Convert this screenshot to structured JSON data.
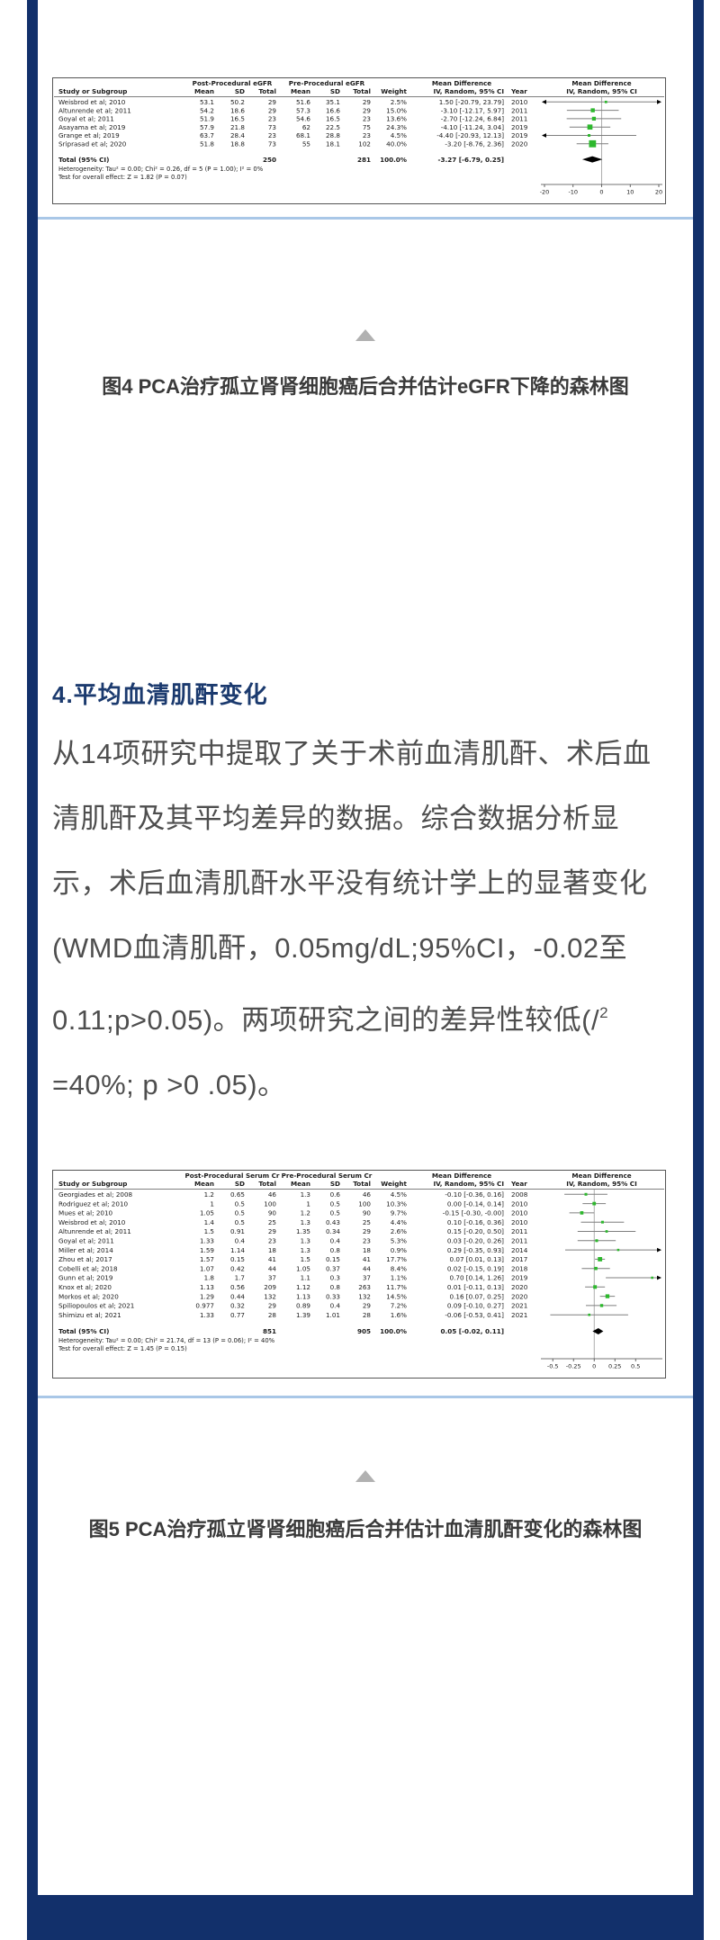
{
  "page": {
    "caption1": "图4 PCA治疗孤立肾肾细胞癌后合并估计eGFR下降的森林图",
    "section_heading": "4.平均血清肌酐变化",
    "paragraph": {
      "line1": "从14项研究中提取了关于术前血清肌酐、术后血",
      "line2": "清肌酐及其平均差异的数据。综合数据分析显",
      "line3": "示，术后血清肌酐水平没有统计学上的显著变化",
      "line4": "(WMD血清肌酐，0.05mg/dL;95%CI，-0.02至",
      "line5_text": "0.11;p>0.05)。两项研究之间的差异性较低(/",
      "line5_sup": "2",
      "line6": "=40%; p >0 .05)。"
    },
    "caption2": "图5 PCA治疗孤立肾肾细胞癌后合并估计血清肌酐变化的森林图"
  },
  "colors": {
    "navy": "#12306B",
    "heading": "#1B3A6E",
    "body_text": "#4E4E4E",
    "caption_text": "#3A3A3A",
    "separator_blue": "#A9C7E7",
    "triangle_gray": "#B1B1B1",
    "forest_green": "#2DB82D",
    "ci_line_gray": "#7F7F7F",
    "table_text": "#1A1A1A"
  },
  "chart_data": [
    {
      "type": "forest",
      "title": "图4 PCA治疗孤立肾肾细胞癌后合并估计eGFR下降的森林图",
      "group_headers": [
        "Post-Procedural eGFR",
        "Pre-Procedural eGFR"
      ],
      "md_header": "Mean Difference",
      "col_labels": {
        "study": "Study or Subgroup",
        "mean": "Mean",
        "sd": "SD",
        "total": "Total",
        "weight": "Weight",
        "ci": "IV, Random, 95% CI",
        "year": "Year"
      },
      "rows": [
        {
          "study": "Weisbrod et al; 2010",
          "mean1": "53.1",
          "sd1": "50.2",
          "total1": "29",
          "mean2": "51.6",
          "sd2": "35.1",
          "total2": "29",
          "weight": "2.5%",
          "ci_label": "1.50 [-20.79, 23.79]",
          "year": "2010",
          "md": 1.5,
          "lo": -20.79,
          "hi": 23.79
        },
        {
          "study": "Altunrende et al; 2011",
          "mean1": "54.2",
          "sd1": "18.6",
          "total1": "29",
          "mean2": "57.3",
          "sd2": "16.6",
          "total2": "29",
          "weight": "15.0%",
          "ci_label": "-3.10 [-12.17, 5.97]",
          "year": "2011",
          "md": -3.1,
          "lo": -12.17,
          "hi": 5.97
        },
        {
          "study": "Goyal et al; 2011",
          "mean1": "51.9",
          "sd1": "16.5",
          "total1": "23",
          "mean2": "54.6",
          "sd2": "16.5",
          "total2": "23",
          "weight": "13.6%",
          "ci_label": "-2.70 [-12.24, 6.84]",
          "year": "2011",
          "md": -2.7,
          "lo": -12.24,
          "hi": 6.84
        },
        {
          "study": "Asayama et al; 2019",
          "mean1": "57.9",
          "sd1": "21.8",
          "total1": "73",
          "mean2": "62",
          "sd2": "22.5",
          "total2": "75",
          "weight": "24.3%",
          "ci_label": "-4.10 [-11.24, 3.04]",
          "year": "2019",
          "md": -4.1,
          "lo": -11.24,
          "hi": 3.04
        },
        {
          "study": "Grange et al; 2019",
          "mean1": "63.7",
          "sd1": "28.4",
          "total1": "23",
          "mean2": "68.1",
          "sd2": "28.8",
          "total2": "23",
          "weight": "4.5%",
          "ci_label": "-4.40 [-20.93, 12.13]",
          "year": "2019",
          "md": -4.4,
          "lo": -20.93,
          "hi": 12.13
        },
        {
          "study": "Sriprasad et al; 2020",
          "mean1": "51.8",
          "sd1": "18.8",
          "total1": "73",
          "mean2": "55",
          "sd2": "18.1",
          "total2": "102",
          "weight": "40.0%",
          "ci_label": "-3.20 [-8.76, 2.36]",
          "year": "2020",
          "md": -3.2,
          "lo": -8.76,
          "hi": 2.36
        }
      ],
      "total": {
        "label": "Total (95% CI)",
        "total1": "250",
        "total2": "281",
        "weight": "100.0%",
        "ci_label": "-3.27 [-6.79, 0.25]",
        "md": -3.27,
        "lo": -6.79,
        "hi": 0.25
      },
      "heterogeneity": "Heterogeneity: Tau² = 0.00; Chi² = 0.26, df = 5 (P = 1.00); I² = 0%",
      "overall_effect": "Test for overall effect: Z = 1.82 (P = 0.07)",
      "axis": {
        "xmin": -20,
        "xmax": 20,
        "ticks": [
          -20,
          -10,
          0,
          10,
          20
        ],
        "tick_labels": [
          "-20",
          "-10",
          "0",
          "10",
          "20"
        ]
      }
    },
    {
      "type": "forest",
      "title": "图5 PCA治疗孤立肾肾细胞癌后合并估计血清肌酐变化的森林图",
      "group_headers": [
        "Post-Procedural Serum Cr",
        "Pre-Procedural Serum Cr"
      ],
      "md_header": "Mean Difference",
      "col_labels": {
        "study": "Study or Subgroup",
        "mean": "Mean",
        "sd": "SD",
        "total": "Total",
        "weight": "Weight",
        "ci": "IV, Random, 95% CI",
        "year": "Year"
      },
      "rows": [
        {
          "study": "Georgiades et al; 2008",
          "mean1": "1.2",
          "sd1": "0.65",
          "total1": "46",
          "mean2": "1.3",
          "sd2": "0.6",
          "total2": "46",
          "weight": "4.5%",
          "ci_label": "-0.10 [-0.36, 0.16]",
          "year": "2008",
          "md": -0.1,
          "lo": -0.36,
          "hi": 0.16
        },
        {
          "study": "Rodriguez et al; 2010",
          "mean1": "1",
          "sd1": "0.5",
          "total1": "100",
          "mean2": "1",
          "sd2": "0.5",
          "total2": "100",
          "weight": "10.3%",
          "ci_label": "0.00 [-0.14, 0.14]",
          "year": "2010",
          "md": 0,
          "lo": -0.14,
          "hi": 0.14
        },
        {
          "study": "Mues et al; 2010",
          "mean1": "1.05",
          "sd1": "0.5",
          "total1": "90",
          "mean2": "1.2",
          "sd2": "0.5",
          "total2": "90",
          "weight": "9.7%",
          "ci_label": "-0.15 [-0.30, -0.00]",
          "year": "2010",
          "md": -0.15,
          "lo": -0.3,
          "hi": 0
        },
        {
          "study": "Weisbrod et al; 2010",
          "mean1": "1.4",
          "sd1": "0.5",
          "total1": "25",
          "mean2": "1.3",
          "sd2": "0.43",
          "total2": "25",
          "weight": "4.4%",
          "ci_label": "0.10 [-0.16, 0.36]",
          "year": "2010",
          "md": 0.1,
          "lo": -0.16,
          "hi": 0.36
        },
        {
          "study": "Altunrende et al; 2011",
          "mean1": "1.5",
          "sd1": "0.91",
          "total1": "29",
          "mean2": "1.35",
          "sd2": "0.34",
          "total2": "29",
          "weight": "2.6%",
          "ci_label": "0.15 [-0.20, 0.50]",
          "year": "2011",
          "md": 0.15,
          "lo": -0.2,
          "hi": 0.5
        },
        {
          "study": "Goyal et al; 2011",
          "mean1": "1.33",
          "sd1": "0.4",
          "total1": "23",
          "mean2": "1.3",
          "sd2": "0.4",
          "total2": "23",
          "weight": "5.3%",
          "ci_label": "0.03 [-0.20, 0.26]",
          "year": "2011",
          "md": 0.03,
          "lo": -0.2,
          "hi": 0.26
        },
        {
          "study": "Miller et al; 2014",
          "mean1": "1.59",
          "sd1": "1.14",
          "total1": "18",
          "mean2": "1.3",
          "sd2": "0.8",
          "total2": "18",
          "weight": "0.9%",
          "ci_label": "0.29 [-0.35, 0.93]",
          "year": "2014",
          "md": 0.29,
          "lo": -0.35,
          "hi": 0.93
        },
        {
          "study": "Zhou et al; 2017",
          "mean1": "1.57",
          "sd1": "0.15",
          "total1": "41",
          "mean2": "1.5",
          "sd2": "0.15",
          "total2": "41",
          "weight": "17.7%",
          "ci_label": "0.07 [0.01, 0.13]",
          "year": "2017",
          "md": 0.07,
          "lo": 0.01,
          "hi": 0.13
        },
        {
          "study": "Cobelli et al; 2018",
          "mean1": "1.07",
          "sd1": "0.42",
          "total1": "44",
          "mean2": "1.05",
          "sd2": "0.37",
          "total2": "44",
          "weight": "8.4%",
          "ci_label": "0.02 [-0.15, 0.19]",
          "year": "2018",
          "md": 0.02,
          "lo": -0.15,
          "hi": 0.19
        },
        {
          "study": "Gunn et al; 2019",
          "mean1": "1.8",
          "sd1": "1.7",
          "total1": "37",
          "mean2": "1.1",
          "sd2": "0.3",
          "total2": "37",
          "weight": "1.1%",
          "ci_label": "0.70 [0.14, 1.26]",
          "year": "2019",
          "md": 0.7,
          "lo": 0.14,
          "hi": 1.26
        },
        {
          "study": "Knox et al; 2020",
          "mean1": "1.13",
          "sd1": "0.56",
          "total1": "209",
          "mean2": "1.12",
          "sd2": "0.8",
          "total2": "263",
          "weight": "11.7%",
          "ci_label": "0.01 [-0.11, 0.13]",
          "year": "2020",
          "md": 0.01,
          "lo": -0.11,
          "hi": 0.13
        },
        {
          "study": "Morkos et al; 2020",
          "mean1": "1.29",
          "sd1": "0.44",
          "total1": "132",
          "mean2": "1.13",
          "sd2": "0.33",
          "total2": "132",
          "weight": "14.5%",
          "ci_label": "0.16 [0.07, 0.25]",
          "year": "2020",
          "md": 0.16,
          "lo": 0.07,
          "hi": 0.25
        },
        {
          "study": "Spiliopoulos et al; 2021",
          "mean1": "0.977",
          "sd1": "0.32",
          "total1": "29",
          "mean2": "0.89",
          "sd2": "0.4",
          "total2": "29",
          "weight": "7.2%",
          "ci_label": "0.09 [-0.10, 0.27]",
          "year": "2021",
          "md": 0.09,
          "lo": -0.1,
          "hi": 0.27
        },
        {
          "study": "Shimizu et al; 2021",
          "mean1": "1.33",
          "sd1": "0.77",
          "total1": "28",
          "mean2": "1.39",
          "sd2": "1.01",
          "total2": "28",
          "weight": "1.6%",
          "ci_label": "-0.06 [-0.53, 0.41]",
          "year": "2021",
          "md": -0.06,
          "lo": -0.53,
          "hi": 0.41
        }
      ],
      "total": {
        "label": "Total (95% CI)",
        "total1": "851",
        "total2": "905",
        "weight": "100.0%",
        "ci_label": "0.05 [-0.02, 0.11]",
        "md": 0.05,
        "lo": -0.02,
        "hi": 0.11
      },
      "heterogeneity": "Heterogeneity: Tau² = 0.00; Chi² = 21.74, df = 13 (P = 0.06); I² = 40%",
      "overall_effect": "Test for overall effect: Z = 1.45 (P = 0.15)",
      "axis": {
        "xmin": -0.6,
        "xmax": 0.78,
        "ticks": [
          -0.5,
          -0.25,
          0,
          0.25,
          0.5
        ],
        "tick_labels": [
          "-0.5",
          "-0.25",
          "0",
          "0.25",
          "0.5"
        ]
      }
    }
  ]
}
